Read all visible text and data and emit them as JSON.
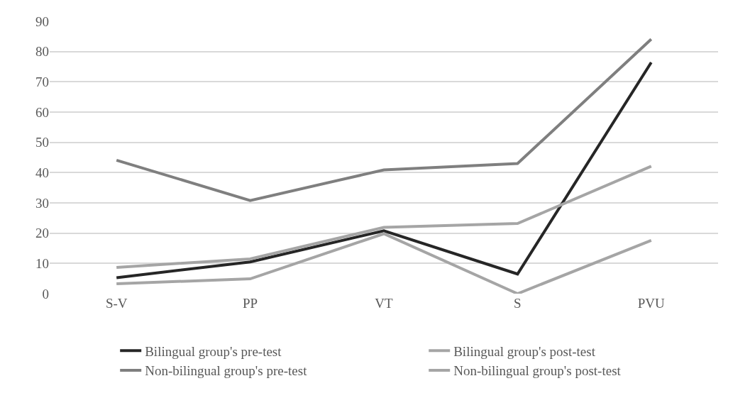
{
  "chart_data": {
    "type": "line",
    "categories": [
      "S-V",
      "PP",
      "VT",
      "S",
      "PVU"
    ],
    "series": [
      {
        "name": "Bilingual group's pre-test",
        "color": "#262626",
        "values": [
          5.3,
          10.5,
          20.8,
          6.5,
          76.4
        ]
      },
      {
        "name": "Bilingual group's post-test",
        "color": "#a5a5a5",
        "values": [
          3.3,
          4.9,
          19.8,
          0,
          17.6
        ]
      },
      {
        "name": "Non-bilingual group's pre-test",
        "color": "#7f7f7f",
        "values": [
          44.1,
          30.8,
          40.9,
          43.0,
          84.1
        ]
      },
      {
        "name": "Non-bilingual group's post-test",
        "color": "#a5a5a5",
        "values": [
          8.7,
          11.5,
          21.9,
          23.2,
          42.1
        ]
      }
    ],
    "ylim": [
      0,
      90
    ],
    "yticks": [
      0,
      10,
      20,
      30,
      40,
      50,
      60,
      70,
      80,
      90
    ],
    "grid": "y",
    "legend": "bottom",
    "marker": "none",
    "line_style": "solid"
  }
}
